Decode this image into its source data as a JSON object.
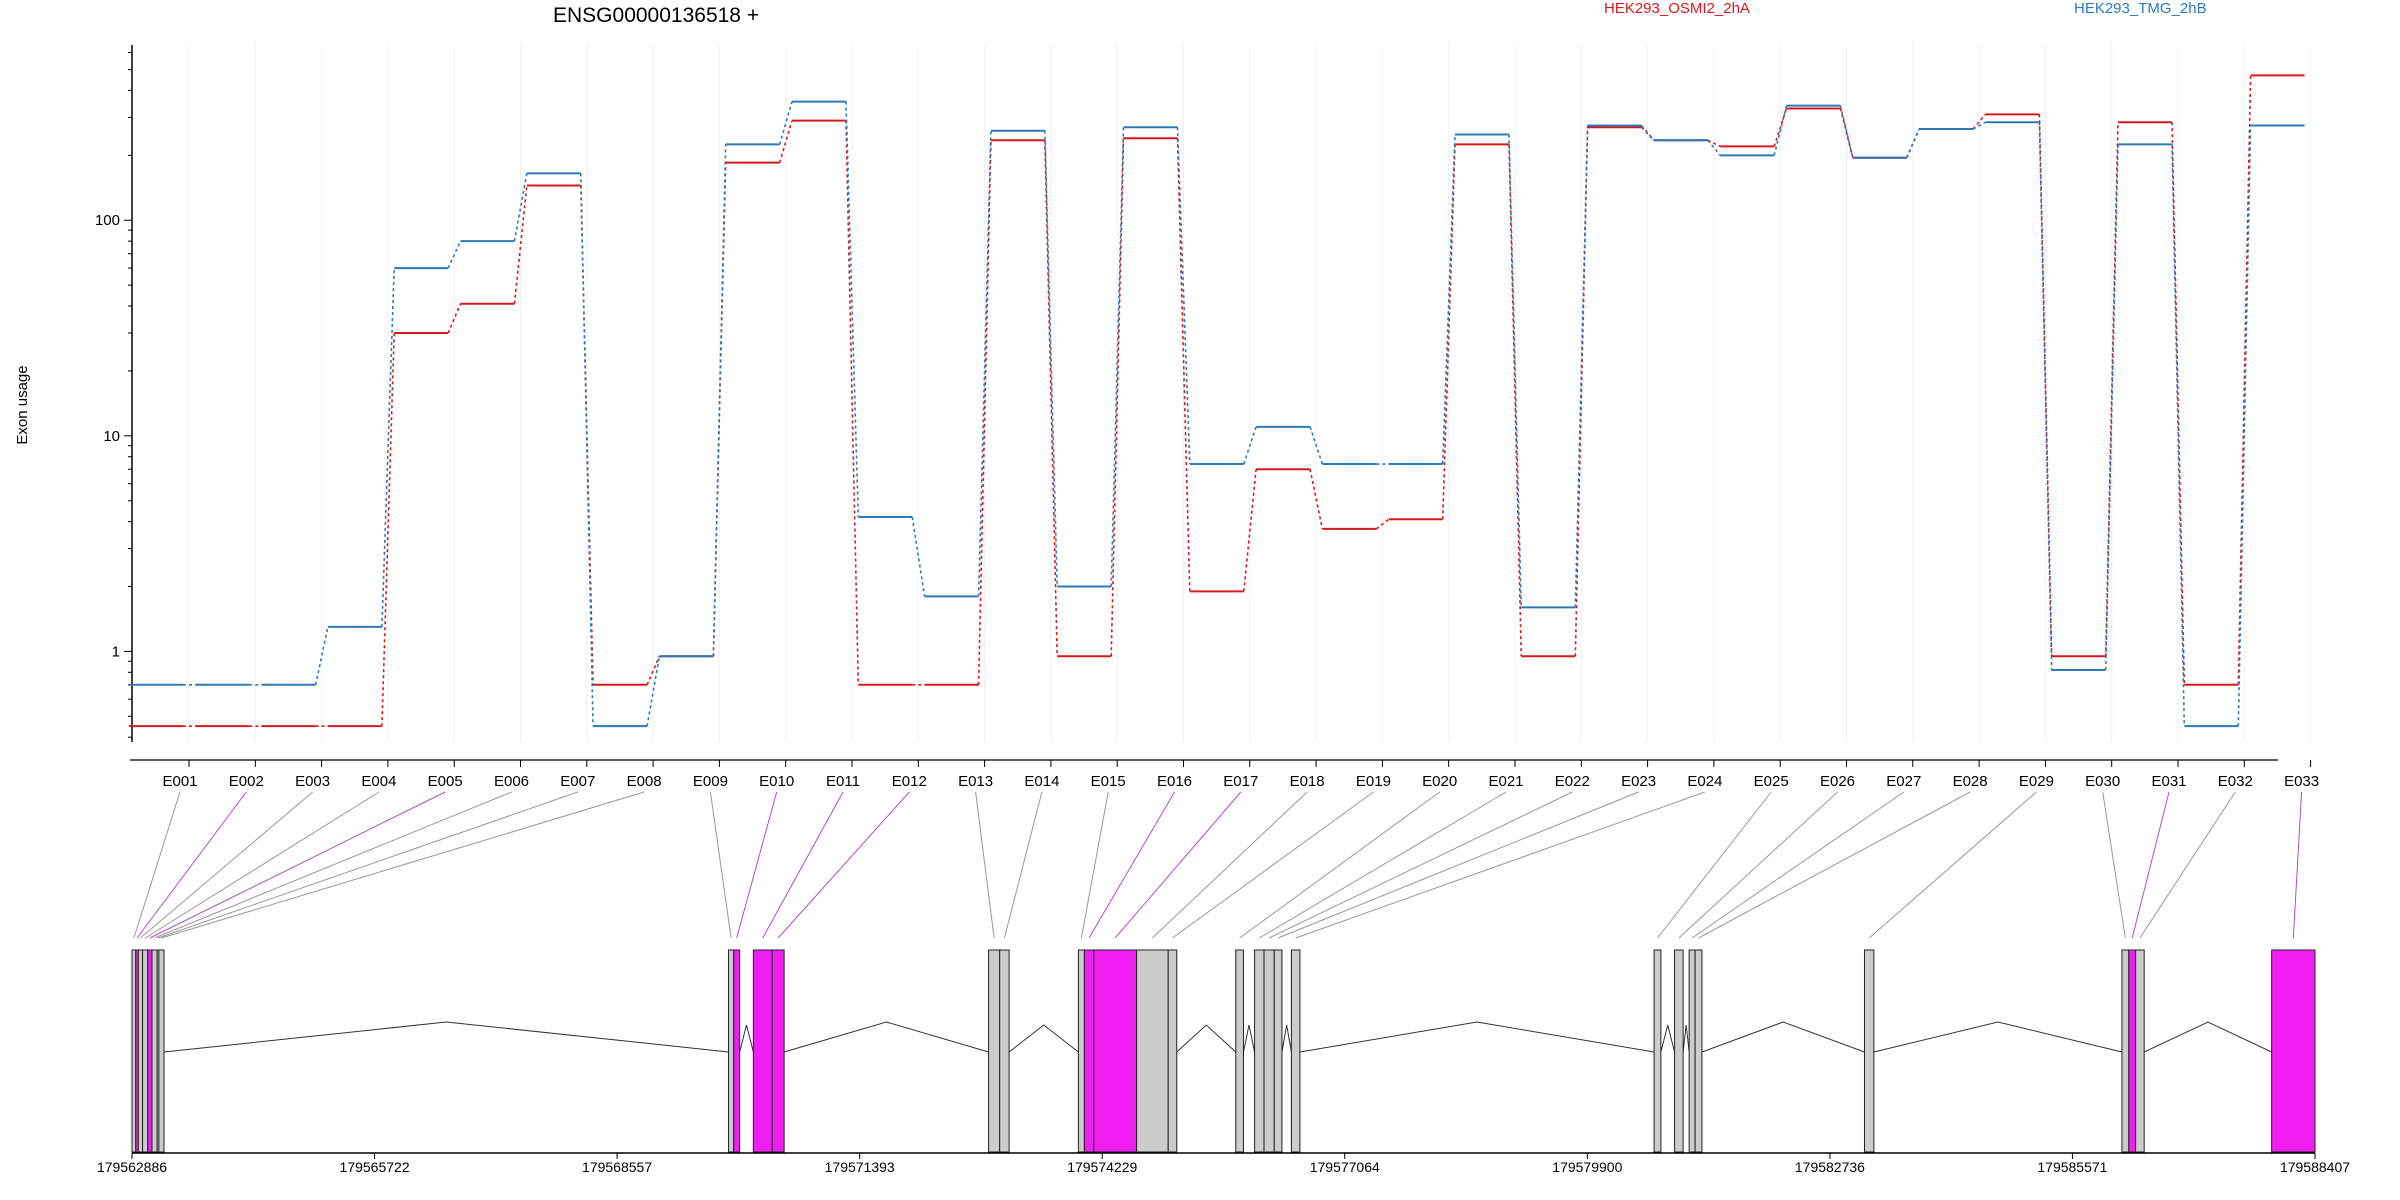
{
  "chart_data": {
    "type": "line",
    "title": "ENSG00000136518 +",
    "ylabel": "Exon usage",
    "yscale": "log",
    "ylim": [
      0.38,
      650
    ],
    "yticks": [
      "1",
      "10",
      "100"
    ],
    "categories": [
      "E001",
      "E002",
      "E003",
      "E004",
      "E005",
      "E006",
      "E007",
      "E008",
      "E009",
      "E010",
      "E011",
      "E012",
      "E013",
      "E014",
      "E015",
      "E016",
      "E017",
      "E018",
      "E019",
      "E020",
      "E021",
      "E022",
      "E023",
      "E024",
      "E025",
      "E026",
      "E027",
      "E028",
      "E029",
      "E030",
      "E031",
      "E032",
      "E033"
    ],
    "series": [
      {
        "name": "HEK293_OSMI2_2hA",
        "color": "#d7191c",
        "values": [
          0.45,
          0.45,
          0.45,
          0.45,
          30,
          41,
          145,
          0.7,
          0.95,
          185,
          290,
          0.7,
          0.7,
          235,
          0.95,
          240,
          1.9,
          7,
          3.7,
          4.1,
          225,
          0.95,
          270,
          235,
          220,
          330,
          195,
          265,
          310,
          0.95,
          285,
          0.7,
          470
        ]
      },
      {
        "name": "HEK293_TMG_2hB",
        "color": "#2c7bb6",
        "values": [
          0.7,
          0.7,
          0.7,
          1.3,
          60,
          80,
          165,
          0.45,
          0.95,
          225,
          355,
          4.2,
          1.8,
          260,
          2.0,
          270,
          7.4,
          11,
          7.4,
          7.4,
          250,
          1.6,
          275,
          235,
          200,
          340,
          195,
          265,
          285,
          0.82,
          225,
          0.45,
          275
        ]
      }
    ],
    "exon_colors": {
      "differential": "#f01ef0",
      "normal": "#cccccc"
    },
    "exon_highlight": [
      false,
      true,
      false,
      false,
      true,
      false,
      false,
      false,
      false,
      true,
      true,
      true,
      false,
      false,
      false,
      true,
      true,
      false,
      false,
      false,
      false,
      false,
      false,
      false,
      false,
      false,
      false,
      false,
      false,
      false,
      true,
      false,
      true
    ],
    "genomic_axis": {
      "range": [
        179562886,
        179588407
      ],
      "ticks": [
        "179562886",
        "179565722",
        "179568557",
        "179571393",
        "179574229",
        "179577064",
        "179579900",
        "179582736",
        "179585571",
        "179588407"
      ]
    },
    "exons": [
      [
        179562886,
        179562930
      ],
      [
        179562930,
        179562960
      ],
      [
        179562960,
        179563010
      ],
      [
        179563010,
        179563070
      ],
      [
        179563070,
        179563120
      ],
      [
        179563120,
        179563180
      ],
      [
        179563180,
        179563200
      ],
      [
        179563200,
        179563260
      ],
      [
        179569860,
        179569920
      ],
      [
        179569920,
        179569990
      ],
      [
        179570150,
        179570370
      ],
      [
        179570370,
        179570510
      ],
      [
        179572900,
        179573030
      ],
      [
        179573030,
        179573140
      ],
      [
        179573950,
        179574020
      ],
      [
        179574020,
        179574130
      ],
      [
        179574130,
        179574630
      ],
      [
        179574630,
        179575000
      ],
      [
        179575000,
        179575100
      ],
      [
        179575790,
        179575880
      ],
      [
        179576010,
        179576120
      ],
      [
        179576120,
        179576240
      ],
      [
        179576240,
        179576330
      ],
      [
        179576440,
        179576540
      ],
      [
        179580680,
        179580760
      ],
      [
        179580920,
        179581020
      ],
      [
        179581090,
        179581160
      ],
      [
        179581160,
        179581240
      ],
      [
        179583140,
        179583250
      ],
      [
        179586150,
        179586230
      ],
      [
        179586230,
        179586310
      ],
      [
        179586310,
        179586410
      ],
      [
        179587900,
        179588407
      ]
    ]
  }
}
